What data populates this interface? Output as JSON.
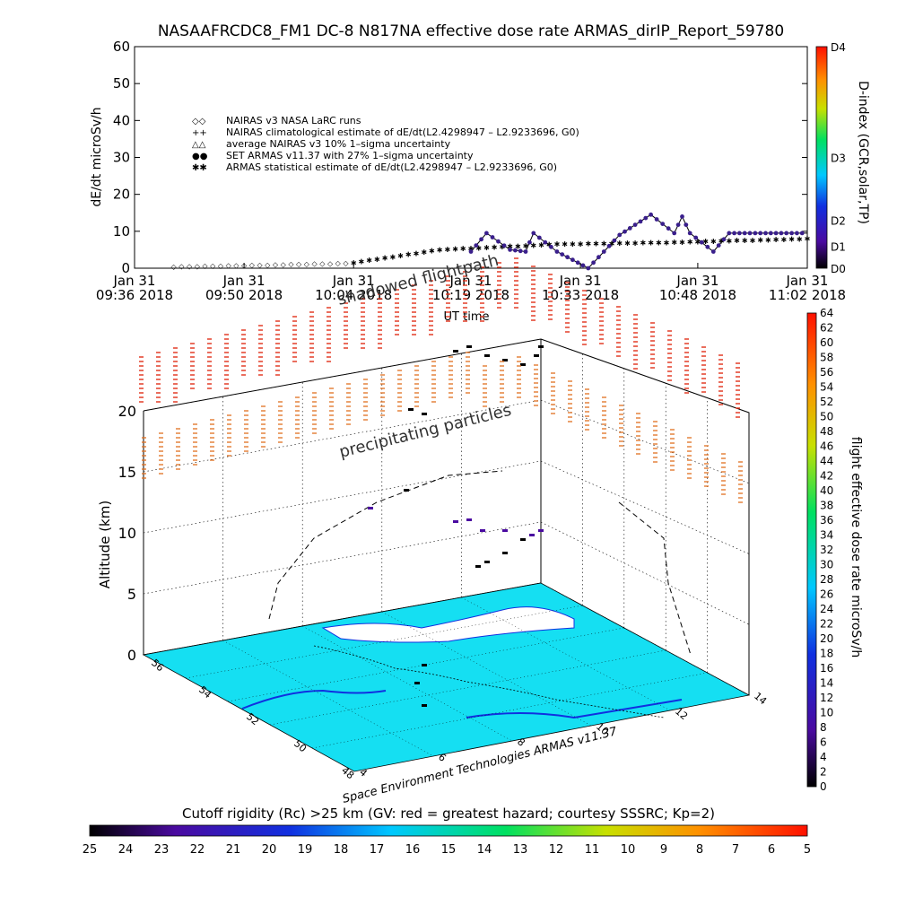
{
  "title": "NASAAFRCDC8_FM1 DC-8    N817NA effective dose rate ARMAS_dirIP_Report_59780",
  "chart_data": [
    {
      "type": "scatter",
      "panel": "dose rate time series",
      "ylabel": "dE/dt microSv/h",
      "xlabel": "UT time",
      "ylim": [
        0,
        60
      ],
      "yticks": [
        0,
        10,
        20,
        30,
        40,
        50,
        60
      ],
      "xticks": [
        {
          "t": "09:36",
          "label1": "Jan 31",
          "label2": "09:36 2018"
        },
        {
          "t": "09:50",
          "label1": "Jan 31",
          "label2": "09:50 2018"
        },
        {
          "t": "10:04",
          "label1": "Jan 31",
          "label2": "10:04 2018"
        },
        {
          "t": "10:19",
          "label1": "Jan 31",
          "label2": "10:19 2018"
        },
        {
          "t": "10:33",
          "label1": "Jan 31",
          "label2": "10:33 2018"
        },
        {
          "t": "10:48",
          "label1": "Jan 31",
          "label2": "10:48 2018"
        },
        {
          "t": "11:02",
          "label1": "Jan 31",
          "label2": "11:02 2018"
        }
      ],
      "legend": [
        {
          "symbol": "◇◇",
          "text": "NAIRAS v3 NASA LaRC runs"
        },
        {
          "symbol": "++",
          "text": "NAIRAS climatological estimate of dE/dt(L2.4298947 – L2.9233696, G0)"
        },
        {
          "symbol": "△△",
          "text": "average NAIRAS v3 10% 1–sigma uncertainty"
        },
        {
          "symbol": "●●",
          "text": "SET ARMAS v11.37 with 27% 1–sigma uncertainty"
        },
        {
          "symbol": "✱✱",
          "text": "ARMAS statistical estimate of dE/dt(L2.4298947 – L2.9233696, G0)"
        }
      ],
      "series": [
        {
          "name": "SET ARMAS v11.37 with 27% 1–sigma uncertainty",
          "color": "#3a1f8c",
          "points": [
            [
              "10:19",
              4.5
            ],
            [
              "10:21",
              9.5
            ],
            [
              "10:24",
              5.0
            ],
            [
              "10:26",
              4.5
            ],
            [
              "10:27",
              9.5
            ],
            [
              "10:30",
              4.5
            ],
            [
              "10:34",
              0.0
            ],
            [
              "10:36",
              4.5
            ],
            [
              "10:38",
              9.0
            ],
            [
              "10:42",
              14.5
            ],
            [
              "10:45",
              9.5
            ],
            [
              "10:46",
              14.0
            ],
            [
              "10:47",
              9.5
            ],
            [
              "10:50",
              4.5
            ],
            [
              "10:52",
              9.5
            ],
            [
              "11:02",
              9.5
            ]
          ]
        },
        {
          "name": "NAIRAS v3 NASA LaRC runs",
          "color": "#000000",
          "points": [
            [
              "09:36",
              0.3
            ],
            [
              "10:04",
              1.5
            ],
            [
              "10:15",
              5.0
            ],
            [
              "10:30",
              6.5
            ],
            [
              "10:45",
              7.0
            ],
            [
              "11:02",
              8.0
            ]
          ]
        }
      ],
      "d_index_scale": {
        "label": "D-index (GCR,solar,TP)",
        "ticks": [
          {
            "label": "D0",
            "value": 0
          },
          {
            "label": "D1",
            "value": 6
          },
          {
            "label": "D2",
            "value": 13
          },
          {
            "label": "D3",
            "value": 30
          },
          {
            "label": "D4",
            "value": 60
          }
        ]
      }
    },
    {
      "type": "scatter",
      "panel": "3D flight path and dose rate",
      "zlabel": "Altitude (km)",
      "zticks": [
        0,
        5,
        10,
        15,
        20
      ],
      "latitude_ticks": [
        48,
        50,
        52,
        54,
        56
      ],
      "longitude_ticks": [
        4,
        6,
        8,
        10,
        12,
        14
      ],
      "annotations": [
        "shadowed flightpath",
        "precipitating particles"
      ],
      "footer": "Space Environment Technologies ARMAS v11.37",
      "colorbar": {
        "label": "flight effective dose rate microSv/h",
        "min": 0,
        "max": 64,
        "ticks": [
          0,
          2,
          4,
          6,
          8,
          10,
          12,
          14,
          16,
          18,
          20,
          22,
          24,
          26,
          28,
          30,
          32,
          34,
          36,
          38,
          40,
          42,
          44,
          46,
          48,
          50,
          52,
          54,
          56,
          58,
          60,
          62,
          64
        ]
      }
    }
  ],
  "cutoff_bar": {
    "title": "Cutoff rigidity (Rc) >25 km  (GV: red = greatest hazard; courtesy SSSRC; Kp=2)",
    "ticks": [
      "25",
      "24",
      "23",
      "22",
      "21",
      "20",
      "19",
      "18",
      "17",
      "16",
      "15",
      "14",
      "13",
      "12",
      "11",
      "10",
      "9",
      "8",
      "7",
      "6",
      "5"
    ]
  }
}
